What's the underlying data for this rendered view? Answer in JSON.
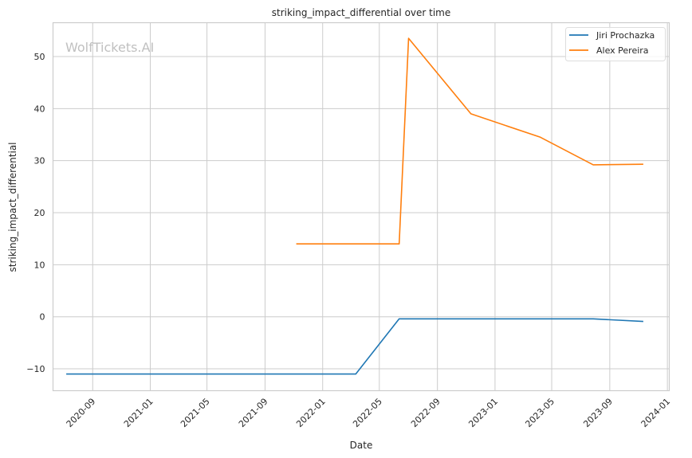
{
  "chart_data": {
    "type": "line",
    "title": "striking_impact_differential over time",
    "xlabel": "Date",
    "ylabel": "striking_impact_differential",
    "watermark": "WolfTickets.AI",
    "xlim": [
      "2020-06-09",
      "2024-01-05"
    ],
    "ylim": [
      -14.2,
      56.5
    ],
    "x_ticks": [
      "2020-09",
      "2021-01",
      "2021-05",
      "2021-09",
      "2022-01",
      "2022-05",
      "2022-09",
      "2023-01",
      "2023-05",
      "2023-09",
      "2024-01"
    ],
    "y_ticks": [
      -10,
      0,
      10,
      20,
      30,
      40,
      50
    ],
    "grid": true,
    "legend_position": "top-right",
    "series": [
      {
        "name": "Jiri Prochazka",
        "color": "#1f77b4",
        "points": [
          {
            "x": "2020-07-07",
            "y": -11
          },
          {
            "x": "2022-03-12",
            "y": -11
          },
          {
            "x": "2022-06-12",
            "y": -0.4
          },
          {
            "x": "2023-07-28",
            "y": -0.4
          },
          {
            "x": "2023-11-11",
            "y": -0.9
          }
        ]
      },
      {
        "name": "Alex Pereira",
        "color": "#ff7f0e",
        "points": [
          {
            "x": "2021-11-06",
            "y": 14
          },
          {
            "x": "2022-06-12",
            "y": 14
          },
          {
            "x": "2022-07-02",
            "y": 53.5
          },
          {
            "x": "2022-11-11",
            "y": 39
          },
          {
            "x": "2023-04-07",
            "y": 34.5
          },
          {
            "x": "2023-07-28",
            "y": 29.2
          },
          {
            "x": "2023-11-11",
            "y": 29.3
          }
        ]
      }
    ]
  }
}
